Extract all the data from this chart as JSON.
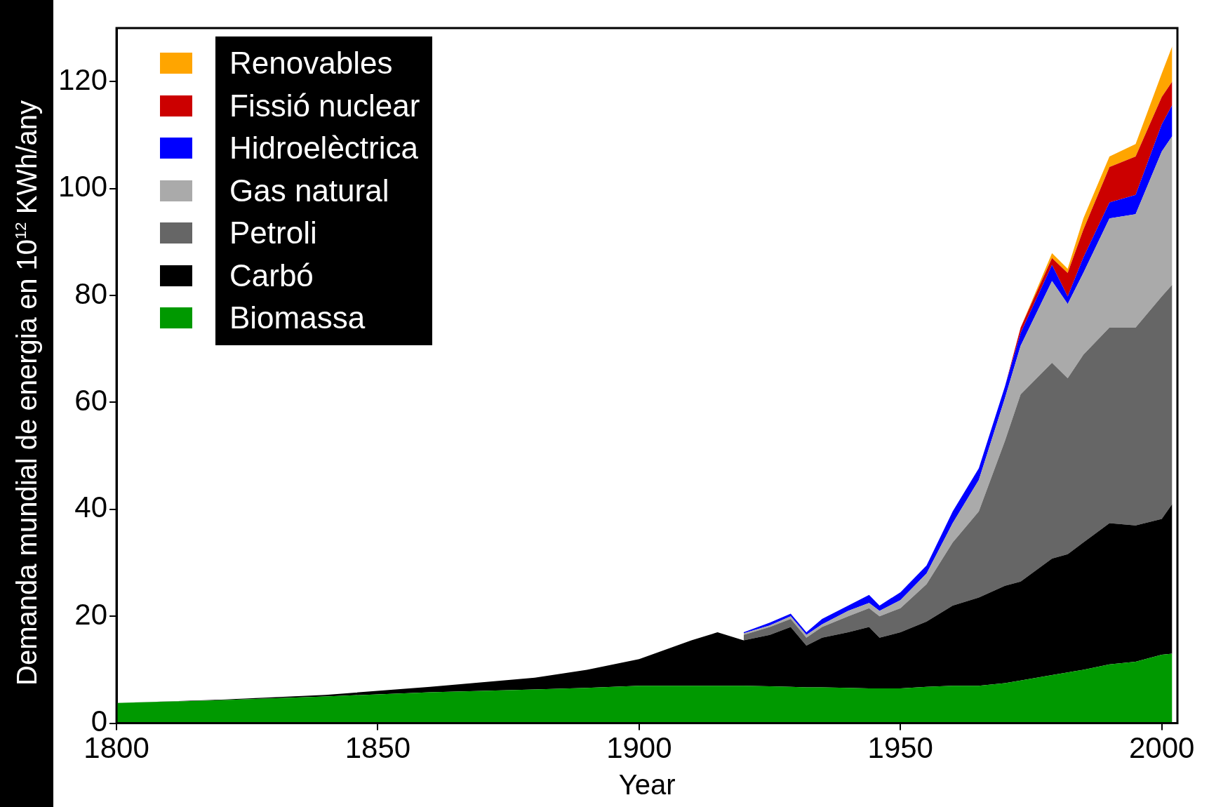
{
  "chart_data": {
    "type": "area",
    "stacked": true,
    "xlabel": "Year",
    "ylabel": "Demanda mundial de energia en 10$^{12}$ KWh/any",
    "x": [
      1800,
      1820,
      1840,
      1860,
      1880,
      1890,
      1900,
      1910,
      1915,
      1920,
      1925,
      1929,
      1932,
      1935,
      1940,
      1944,
      1946,
      1950,
      1955,
      1960,
      1965,
      1970,
      1973,
      1979,
      1982,
      1985,
      1990,
      1995,
      2000,
      2002
    ],
    "series": [
      {
        "name": "Biomassa",
        "color": "#009900",
        "values": [
          3.8,
          4.3,
          5.0,
          5.8,
          6.3,
          6.6,
          7,
          7,
          7,
          7,
          6.9,
          6.8,
          6.7,
          6.7,
          6.6,
          6.5,
          6.5,
          6.5,
          6.8,
          7,
          7,
          7.5,
          8,
          9,
          9.5,
          10,
          11,
          11.5,
          12.8,
          13
        ]
      },
      {
        "name": "Carbó",
        "color": "#000000",
        "values": [
          0,
          0.1,
          0.3,
          1.0,
          2.2,
          3.4,
          5,
          8.5,
          10,
          8.5,
          9.6,
          11.2,
          7.8,
          9.3,
          10.4,
          11.5,
          9.5,
          10.5,
          12.2,
          15,
          16.5,
          18.2,
          18.5,
          21.8,
          22.1,
          23.8,
          26.4,
          25.5,
          25.4,
          28
        ]
      },
      {
        "name": "Petroli",
        "color": "#666666",
        "values": [
          null,
          null,
          null,
          null,
          null,
          null,
          null,
          null,
          null,
          1,
          1.5,
          1.5,
          1.5,
          2,
          3,
          3.5,
          4,
          4.5,
          7,
          11.8,
          16.1,
          27.1,
          35,
          36.6,
          32.9,
          35.1,
          36.6,
          37,
          41.6,
          41
        ]
      },
      {
        "name": "Gas natural",
        "color": "#aaaaaa",
        "values": [
          null,
          null,
          null,
          null,
          null,
          null,
          null,
          null,
          null,
          0.3,
          0.3,
          0.5,
          0.5,
          0.5,
          1,
          1,
          1,
          1.5,
          2,
          3.6,
          5.9,
          8,
          9.1,
          15.3,
          13.9,
          15.3,
          20.4,
          21.2,
          27.1,
          27.8
        ]
      },
      {
        "name": "Hidroelèctrica",
        "color": "#0000ff",
        "values": [
          null,
          null,
          null,
          null,
          null,
          null,
          null,
          null,
          null,
          0.2,
          0.5,
          0.5,
          0.5,
          1,
          1,
          1.5,
          1,
          1.5,
          1.5,
          2.2,
          2.2,
          2.2,
          2.4,
          3,
          1.4,
          2.9,
          3,
          3.6,
          5.1,
          5.8
        ]
      },
      {
        "name": "Fissió nuclear",
        "color": "#cc0000",
        "values": [
          null,
          null,
          null,
          null,
          null,
          null,
          null,
          null,
          null,
          null,
          null,
          null,
          null,
          null,
          null,
          null,
          null,
          null,
          null,
          null,
          null,
          0,
          1,
          1.3,
          4.4,
          5.2,
          6.6,
          7.2,
          5.1,
          4.4
        ]
      },
      {
        "name": "Renovables",
        "color": "#ffa500",
        "values": [
          null,
          null,
          null,
          null,
          null,
          null,
          null,
          null,
          null,
          null,
          null,
          null,
          null,
          null,
          null,
          null,
          null,
          null,
          null,
          null,
          null,
          null,
          0,
          0.9,
          0.8,
          2.1,
          2,
          2.3,
          4.4,
          6.6
        ]
      }
    ],
    "xlim": [
      1800,
      2003
    ],
    "xticks": [
      1800,
      1850,
      1900,
      1950,
      2000
    ],
    "ylim": [
      0,
      130
    ],
    "yticks": [
      0,
      20,
      40,
      60,
      80,
      100,
      120
    ],
    "grid": false,
    "legend": "top left"
  }
}
